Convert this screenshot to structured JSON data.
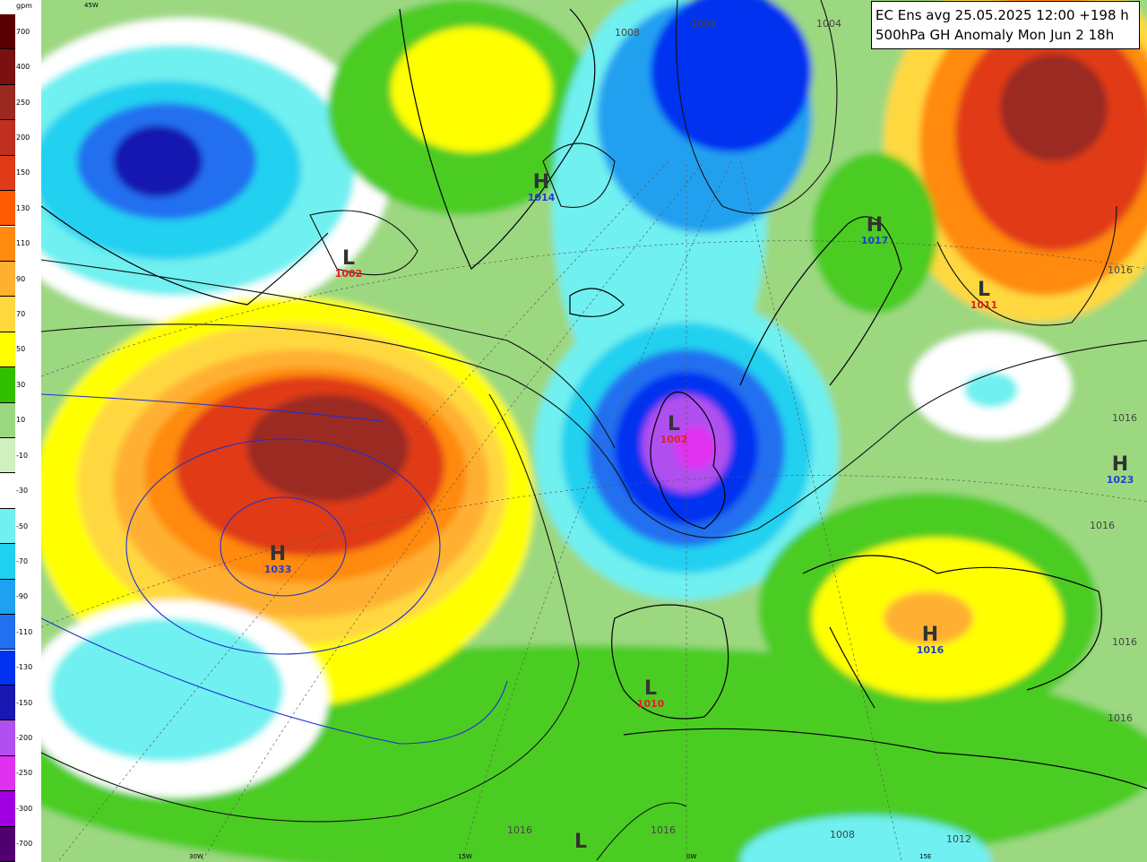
{
  "title": {
    "line1": "EC Ens avg 25.05.2025 12:00 +198 h",
    "line2": "500hPa GH Anomaly Mon Jun 2 18h"
  },
  "legend": {
    "unit": "gpm",
    "labels": [
      "700",
      "400",
      "250",
      "200",
      "150",
      "130",
      "110",
      "90",
      "70",
      "50",
      "30",
      "10",
      "-10",
      "-30",
      "-50",
      "-70",
      "-90",
      "-110",
      "-130",
      "-150",
      "-200",
      "-250",
      "-300",
      "-700"
    ],
    "colors": [
      "#5a0000",
      "#7a1010",
      "#9a2a20",
      "#c03020",
      "#e03a18",
      "#ff5a00",
      "#ff8a10",
      "#ffb030",
      "#ffd840",
      "#ffff00",
      "#30c000",
      "#9cd880",
      "#d0f0c0",
      "#ffffff",
      "#70f0f0",
      "#20d0f0",
      "#20a0f0",
      "#2070f0",
      "#0030f0",
      "#1818b0",
      "#b050f0",
      "#e030f0",
      "#a000e0",
      "#500070"
    ]
  },
  "pressure_systems": [
    {
      "type": "L",
      "value": "1002"
    },
    {
      "type": "H",
      "value": "1014"
    },
    {
      "type": "H",
      "value": "1017"
    },
    {
      "type": "L",
      "value": "1011"
    },
    {
      "type": "L",
      "value": "1002"
    },
    {
      "type": "H",
      "value": "1033"
    },
    {
      "type": "H",
      "value": "1023"
    },
    {
      "type": "H",
      "value": "1016"
    },
    {
      "type": "L",
      "value": "1010"
    },
    {
      "type": "L",
      "value": ""
    }
  ],
  "longitude_labels": [
    "45W",
    "30W",
    "15W",
    "0W",
    "15E"
  ],
  "isobar_labels": [
    "1008",
    "1004",
    "1004",
    "1016",
    "1016",
    "1016",
    "1016",
    "1016",
    "1008",
    "1012",
    "1016",
    "1016"
  ]
}
